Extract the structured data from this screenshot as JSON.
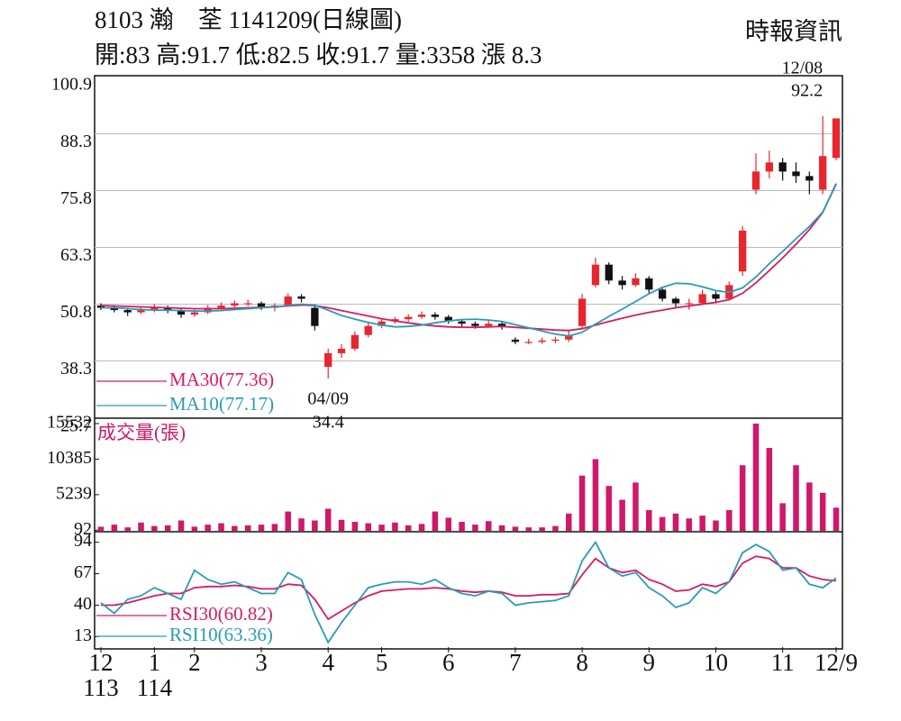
{
  "header": {
    "title": "8103  瀚　荃 1141209(日線圖)",
    "quote": "開:83 高:91.7 低:82.5 收:91.7 量:3358 漲 8.3",
    "source": "時報資訊"
  },
  "chart_data": [
    {
      "type": "candlestick",
      "open": [
        50.5,
        50,
        49.5,
        49,
        49.5,
        50,
        49.5,
        48.5,
        49,
        50,
        50.5,
        51,
        51,
        50,
        50.5,
        52.5,
        50,
        37,
        40,
        41,
        44,
        46,
        47,
        47.5,
        48,
        48.5,
        48,
        47,
        46.5,
        46,
        46.5,
        43,
        42.5,
        42.5,
        42.8,
        43,
        46,
        55,
        59.5,
        56,
        55,
        56.5,
        54,
        52,
        51,
        51,
        53,
        52,
        58,
        76,
        80,
        82,
        80,
        79,
        76,
        83
      ],
      "high": [
        51,
        50.6,
        50,
        50.2,
        50.8,
        50.5,
        50,
        49.6,
        50.6,
        51.2,
        51.6,
        51.8,
        51.4,
        51,
        53.2,
        53,
        50.5,
        41,
        42,
        44.8,
        46.6,
        47.6,
        48,
        48.6,
        49.2,
        49,
        48.4,
        47.5,
        47,
        47.2,
        47,
        43.5,
        43.2,
        43.4,
        43.6,
        45,
        53,
        61,
        60,
        57,
        57.6,
        57,
        54.6,
        52.4,
        52,
        54,
        53.6,
        55.8,
        68,
        84,
        84.6,
        83,
        82,
        80,
        92.2,
        91.7
      ],
      "low": [
        49.5,
        49,
        48.2,
        48.6,
        49,
        48.8,
        47.8,
        48,
        48.6,
        49.6,
        50,
        50.4,
        49.5,
        49.2,
        50.2,
        51.2,
        45,
        34.4,
        39,
        40.5,
        43.5,
        45.5,
        46.5,
        47,
        47.6,
        47.4,
        46.5,
        45.8,
        45.4,
        45.6,
        45.2,
        42,
        42,
        42.1,
        42.2,
        42.5,
        45.5,
        54.5,
        55.2,
        54,
        54.6,
        53.2,
        51.4,
        50,
        49.6,
        50.6,
        51,
        51.6,
        57,
        75,
        78.5,
        78,
        77.5,
        75,
        75,
        82.5
      ],
      "close": [
        50,
        49.5,
        49,
        49.5,
        50,
        49.5,
        48.5,
        49,
        50,
        50.5,
        51,
        51,
        50,
        50.5,
        52.5,
        52,
        46,
        40,
        41,
        44,
        46,
        47,
        47.5,
        48,
        48.5,
        48,
        47,
        46.5,
        46,
        46.5,
        46,
        42.5,
        42.5,
        42.8,
        43,
        44,
        52,
        59.5,
        56,
        55,
        56.5,
        54,
        52,
        51,
        51,
        53,
        52,
        55,
        67,
        80,
        82,
        80,
        79,
        78,
        83.4,
        91.7
      ],
      "up_color": "#e8262d",
      "down_color": "#111111",
      "ylim": [
        25.7,
        100.9
      ],
      "yticks": [
        100.9,
        88.3,
        75.8,
        63.3,
        50.8,
        38.3,
        25.7
      ],
      "grid": true,
      "series": [
        {
          "name": "MA30(77.36)",
          "color": "#d81b60",
          "values": [
            50.5,
            50.4,
            50.3,
            50.2,
            50.1,
            50,
            49.9,
            49.8,
            49.8,
            49.8,
            49.9,
            50,
            50.1,
            50.2,
            50.4,
            50.6,
            50.5,
            50,
            49.4,
            48.8,
            48.2,
            47.6,
            47.1,
            46.7,
            46.3,
            46,
            45.8,
            45.7,
            45.7,
            45.8,
            45.9,
            45.7,
            45.5,
            45.3,
            45.1,
            45,
            45.4,
            46.2,
            47,
            47.7,
            48.4,
            49,
            49.5,
            50,
            50.4,
            50.8,
            51.2,
            51.8,
            53.2,
            55.5,
            58.2,
            61,
            64,
            67.2,
            71,
            77.36
          ]
        },
        {
          "name": "MA10(77.17)",
          "color": "#2a9bb5",
          "values": [
            50,
            50,
            49.8,
            49.6,
            49.5,
            49.5,
            49.4,
            49.3,
            49.3,
            49.4,
            49.6,
            49.8,
            50,
            50.2,
            50.5,
            50.8,
            50.6,
            49.5,
            48.3,
            47.5,
            46.8,
            46.2,
            45.8,
            45.9,
            46.2,
            46.7,
            47.1,
            47.4,
            47.5,
            47.3,
            47,
            46.3,
            45.6,
            44.9,
            44.2,
            43.8,
            44.6,
            46.4,
            48.1,
            49.7,
            51.4,
            53.1,
            54.5,
            55.4,
            55.3,
            54.6,
            53.8,
            53.4,
            54.4,
            56.8,
            59.7,
            62.4,
            65.2,
            67.9,
            71.1,
            77.17
          ]
        }
      ],
      "annotations": [
        {
          "date": "04/09",
          "value": 34.4
        },
        {
          "date": "12/08",
          "value": 92.2
        }
      ],
      "xticks": [
        {
          "value": 0,
          "label": "12"
        },
        {
          "value": 4,
          "label": "1"
        },
        {
          "value": 7,
          "label": "2"
        },
        {
          "value": 12,
          "label": "3"
        },
        {
          "value": 17,
          "label": "4"
        },
        {
          "value": 21,
          "label": "5"
        },
        {
          "value": 26,
          "label": "6"
        },
        {
          "value": 31,
          "label": "7"
        },
        {
          "value": 36,
          "label": "8"
        },
        {
          "value": 41,
          "label": "9"
        },
        {
          "value": 46,
          "label": "10"
        },
        {
          "value": 51,
          "label": "11"
        },
        {
          "value": 55,
          "label": "12/9"
        }
      ],
      "xticks2": [
        {
          "value": 0,
          "label": "113"
        },
        {
          "value": 4,
          "label": "114"
        }
      ]
    },
    {
      "type": "bar",
      "title": "成交量(張)",
      "color": "#d0186b",
      "values": [
        600,
        900,
        500,
        1200,
        700,
        800,
        1500,
        600,
        900,
        1100,
        700,
        800,
        900,
        1000,
        2800,
        1800,
        1500,
        3200,
        1600,
        1300,
        1100,
        900,
        1200,
        800,
        1000,
        2800,
        1900,
        1300,
        900,
        1400,
        800,
        600,
        500,
        500,
        700,
        2500,
        8000,
        10385,
        6500,
        4500,
        7000,
        3000,
        2000,
        2500,
        1800,
        2200,
        1500,
        3000,
        9500,
        15532,
        12000,
        4000,
        9500,
        7000,
        5500,
        3358
      ],
      "ylim": [
        0,
        15532
      ],
      "yticks": [
        92,
        5239,
        10385,
        15532
      ]
    },
    {
      "type": "line",
      "ylim": [
        4,
        103
      ],
      "yticks": [
        94,
        67,
        40,
        13
      ],
      "series": [
        {
          "name": "RSI30(60.82)",
          "color": "#d81b60",
          "values": [
            40,
            40,
            42,
            45,
            48,
            50,
            50,
            55,
            56,
            56,
            57,
            56,
            54,
            54,
            58,
            57,
            45,
            28,
            35,
            42,
            48,
            52,
            53,
            54,
            54,
            55,
            54,
            52,
            51,
            52,
            51,
            48,
            48,
            49,
            49,
            50,
            66,
            80,
            72,
            68,
            70,
            62,
            58,
            52,
            53,
            58,
            56,
            60,
            76,
            82,
            80,
            72,
            72,
            65,
            62,
            60.82
          ]
        },
        {
          "name": "RSI10(63.36)",
          "color": "#2a9bb5",
          "values": [
            42,
            33,
            45,
            48,
            55,
            50,
            45,
            70,
            62,
            58,
            60,
            55,
            50,
            50,
            68,
            62,
            32,
            8,
            25,
            40,
            55,
            58,
            60,
            60,
            58,
            62,
            55,
            50,
            48,
            52,
            50,
            40,
            42,
            43,
            44,
            48,
            78,
            94,
            72,
            65,
            68,
            55,
            48,
            38,
            42,
            55,
            50,
            60,
            85,
            92,
            86,
            70,
            72,
            58,
            55,
            63.36
          ]
        }
      ]
    }
  ]
}
